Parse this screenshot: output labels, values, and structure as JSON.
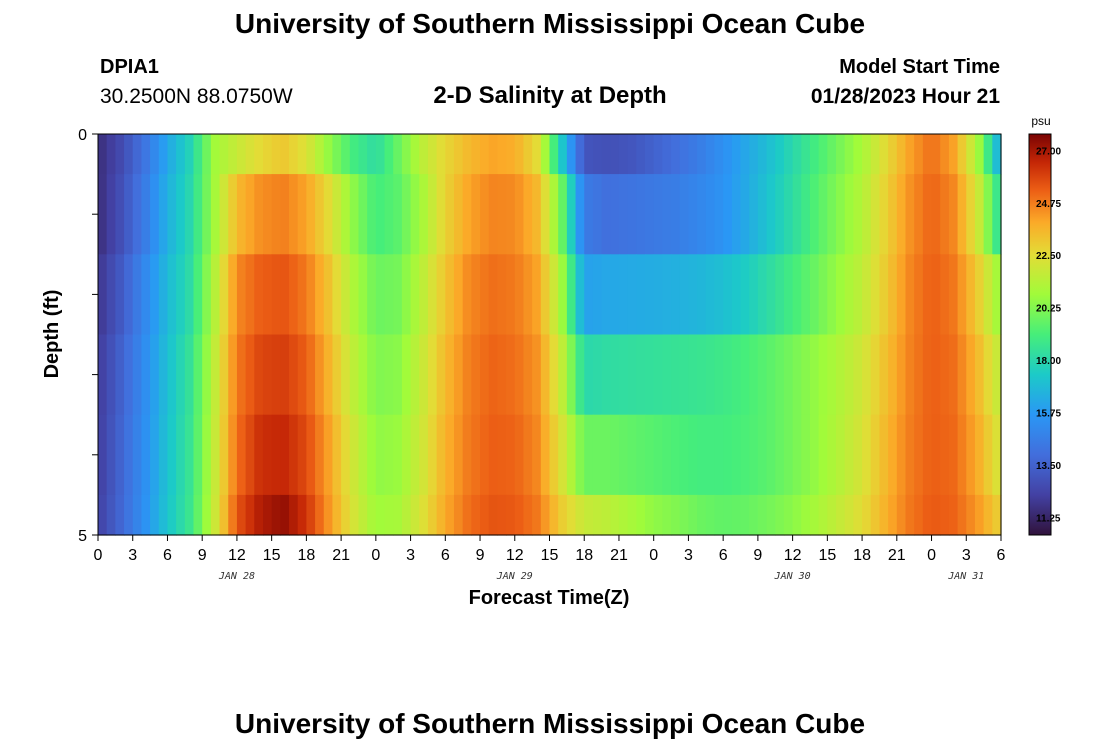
{
  "header": {
    "title": "University of Southern Mississippi Ocean Cube",
    "station_id": "DPIA1",
    "station_coords": "30.2500N  88.0750W",
    "subtitle": "2-D Salinity at Depth",
    "model_start_label": "Model Start Time",
    "model_start_value": "01/28/2023 Hour 21"
  },
  "footer": {
    "title": "University of Southern Mississippi Ocean Cube"
  },
  "chart_data": {
    "type": "heatmap",
    "title": "2-D Salinity at Depth",
    "xlabel": "Forecast Time(Z)",
    "ylabel": "Depth (ft)",
    "x_tick_labels": [
      "0",
      "3",
      "6",
      "9",
      "12",
      "15",
      "18",
      "21",
      "0",
      "3",
      "6",
      "9",
      "12",
      "15",
      "18",
      "21",
      "0",
      "3",
      "6",
      "9",
      "12",
      "15",
      "18",
      "21",
      "0",
      "3",
      "6"
    ],
    "day_labels": [
      {
        "label": "JAN 28",
        "tick_index": 4
      },
      {
        "label": "JAN 29",
        "tick_index": 12
      },
      {
        "label": "JAN 30",
        "tick_index": 20
      },
      {
        "label": "JAN 31",
        "tick_index": 25
      }
    ],
    "y_tick_labels": [
      "0",
      "",
      "",
      "",
      "",
      "5"
    ],
    "ylim": [
      0,
      5
    ],
    "x_range_hours": [
      0,
      78
    ],
    "colorbar": {
      "unit": "psu",
      "min": 10.5,
      "max": 27.7,
      "ticks": [
        "27.00",
        "24.75",
        "22.50",
        "20.25",
        "18.00",
        "15.75",
        "13.50",
        "11.25"
      ]
    },
    "depth_layers": [
      "0-0.5 ft",
      "0.5-1.5 ft",
      "1.5-2.5 ft",
      "2.5-3.5 ft",
      "3.5-4.5 ft",
      "4.5-5 ft"
    ],
    "time_keypoints_hours": [
      0,
      2,
      4,
      6,
      8,
      10,
      12,
      14,
      16,
      18,
      20,
      22,
      24,
      26,
      28,
      30,
      32,
      34,
      36,
      38,
      40,
      42,
      44,
      46,
      48,
      50,
      52,
      54,
      56,
      58,
      60,
      62,
      64,
      66,
      68,
      70,
      72,
      74,
      76,
      78
    ],
    "salinity_psu": [
      [
        11.5,
        12.6,
        14.2,
        16.2,
        17.8,
        20.8,
        21.8,
        22.6,
        23.1,
        22.3,
        20.5,
        19.0,
        18.2,
        19.8,
        21.5,
        22.7,
        23.5,
        24.0,
        23.8,
        22.5,
        17.5,
        13.0,
        12.8,
        13.0,
        13.5,
        14.0,
        14.6,
        15.4,
        16.2,
        17.0,
        18.0,
        19.0,
        20.0,
        21.0,
        22.5,
        24.0,
        25.0,
        24.0,
        21.0,
        16.0
      ],
      [
        11.5,
        12.8,
        14.5,
        16.5,
        18.0,
        20.8,
        23.5,
        24.4,
        24.7,
        24.0,
        22.5,
        20.5,
        19.0,
        19.5,
        21.0,
        22.8,
        24.0,
        24.6,
        24.5,
        23.5,
        20.0,
        14.5,
        14.0,
        14.2,
        14.4,
        14.6,
        15.0,
        15.5,
        16.3,
        17.2,
        18.2,
        19.3,
        20.3,
        21.3,
        22.8,
        24.3,
        25.2,
        24.5,
        22.0,
        18.0
      ],
      [
        11.8,
        13.2,
        15.0,
        16.8,
        18.2,
        21.2,
        24.5,
        25.3,
        25.5,
        24.8,
        23.2,
        21.2,
        19.8,
        20.0,
        21.5,
        23.2,
        24.5,
        25.0,
        24.8,
        24.0,
        21.0,
        16.0,
        16.2,
        16.3,
        16.4,
        16.5,
        16.7,
        17.0,
        17.5,
        18.2,
        19.0,
        19.8,
        20.7,
        21.6,
        23.0,
        24.5,
        25.3,
        24.8,
        23.0,
        20.5
      ],
      [
        12.0,
        13.5,
        15.2,
        17.0,
        18.5,
        21.5,
        24.8,
        25.8,
        26.0,
        25.3,
        23.6,
        21.6,
        20.2,
        20.4,
        21.8,
        23.5,
        24.7,
        25.2,
        25.0,
        24.3,
        21.8,
        18.0,
        18.2,
        18.3,
        18.4,
        18.5,
        18.6,
        18.8,
        19.1,
        19.5,
        20.0,
        20.6,
        21.2,
        22.0,
        23.3,
        24.6,
        25.3,
        25.0,
        23.5,
        21.5
      ],
      [
        12.1,
        13.6,
        15.3,
        17.1,
        18.6,
        21.6,
        25.0,
        26.3,
        26.5,
        25.7,
        24.0,
        22.0,
        20.5,
        20.7,
        22.0,
        23.7,
        24.8,
        25.3,
        25.2,
        24.5,
        22.3,
        19.8,
        19.8,
        19.6,
        19.4,
        19.2,
        19.0,
        19.0,
        19.2,
        19.5,
        20.0,
        20.6,
        21.3,
        22.2,
        23.5,
        24.7,
        25.3,
        25.1,
        23.8,
        22.0
      ],
      [
        12.2,
        13.7,
        15.4,
        17.2,
        18.7,
        21.7,
        25.5,
        26.8,
        27.3,
        26.2,
        24.2,
        22.2,
        20.8,
        21.0,
        22.3,
        23.9,
        25.0,
        25.5,
        25.4,
        24.8,
        23.0,
        21.8,
        21.5,
        21.0,
        20.5,
        20.2,
        19.8,
        19.6,
        19.7,
        20.0,
        20.4,
        21.0,
        21.7,
        22.5,
        23.7,
        24.8,
        25.4,
        25.2,
        24.2,
        22.8
      ]
    ]
  }
}
